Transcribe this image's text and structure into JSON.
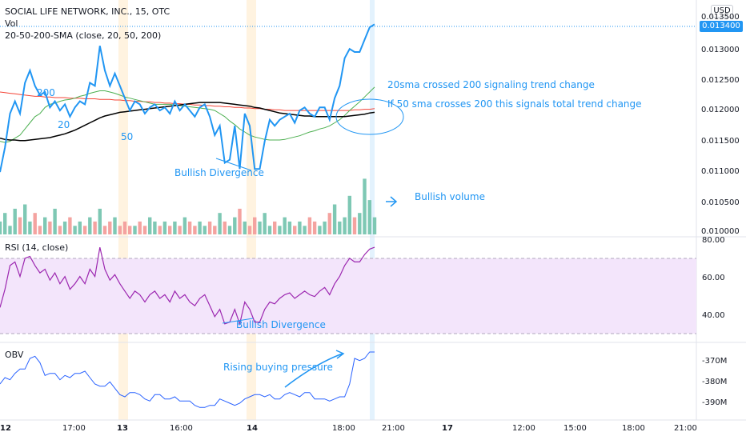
{
  "header": {
    "symbol_line": "SOCIAL LIFE NETWORK, INC., 15, OTC",
    "volume_label": "Vol",
    "sma_label": "20-50-200-SMA (close, 20, 50, 200)"
  },
  "price_axis": {
    "currency": "USD",
    "last_price": "0.013400",
    "tick_labels": [
      "0.013500",
      "0.013000",
      "0.012500",
      "0.012000",
      "0.011500",
      "0.011000",
      "0.010500",
      "0.010000"
    ]
  },
  "rsi_pane": {
    "label": "RSI (14, close)",
    "tick_labels": [
      "80.00",
      "60.00",
      "40.00"
    ]
  },
  "obv_pane": {
    "label": "OBV",
    "tick_labels": [
      "-370M",
      "-380M",
      "-390M"
    ]
  },
  "time_axis": {
    "tick_labels": [
      "12",
      "17:00",
      "13",
      "16:00",
      "14",
      "18:00",
      "21:00",
      "17",
      "12:00",
      "15:00",
      "18:00",
      "21:00"
    ]
  },
  "annotations": {
    "sma20_cross": "20sma crossed 200 signaling trend change",
    "sma50_cross": "If 50 sma crosses 200 this signals total trend change",
    "bullish_divergence_price": "Bullish Divergence",
    "bullish_volume": "Bullish volume",
    "bullish_divergence_rsi": "Bullish Divergence",
    "rising_buying_pressure": "Rising buying pressure",
    "ma200_label": "200",
    "ma20_label": "20",
    "ma50_label": "50"
  },
  "colors": {
    "price": "#2196f3",
    "sma20": "#4caf50",
    "sma50": "#000000",
    "sma200": "#f44336",
    "vol_up": "#7ec8b4",
    "vol_down": "#f4a3a0",
    "rsi_line": "#9c27b0",
    "rsi_band": "#f3e5fb",
    "obv": "#2962ff",
    "highlight": "#fff3e0",
    "annotation": "#2196f3"
  },
  "chart_data": [
    {
      "type": "line",
      "title": "SOCIAL LIFE NETWORK, INC., 15, OTC",
      "ylim": [
        0.01,
        0.0136
      ],
      "series": [
        {
          "name": "Price",
          "values": [
            0.011,
            0.0114,
            0.01195,
            0.01215,
            0.01195,
            0.01245,
            0.01265,
            0.0124,
            0.01225,
            0.0123,
            0.01205,
            0.01215,
            0.012,
            0.0121,
            0.0119,
            0.01205,
            0.01215,
            0.0121,
            0.01245,
            0.0124,
            0.01305,
            0.01265,
            0.0124,
            0.0126,
            0.0124,
            0.0122,
            0.012,
            0.01215,
            0.0121,
            0.01195,
            0.01205,
            0.0121,
            0.012,
            0.01205,
            0.01195,
            0.01215,
            0.012,
            0.0121,
            0.012,
            0.0119,
            0.01205,
            0.0121,
            0.0119,
            0.0116,
            0.01175,
            0.01115,
            0.0112,
            0.01175,
            0.01105,
            0.01195,
            0.01175,
            0.01105,
            0.01105,
            0.0115,
            0.01185,
            0.01175,
            0.01185,
            0.0119,
            0.01195,
            0.0118,
            0.012,
            0.01205,
            0.01195,
            0.0119,
            0.01205,
            0.01205,
            0.01185,
            0.0122,
            0.0124,
            0.01285,
            0.013,
            0.01295,
            0.01295,
            0.01315,
            0.01335,
            0.0134
          ]
        },
        {
          "name": "20",
          "values": [
            0.0115,
            0.01148,
            0.0115,
            0.01155,
            0.0116,
            0.0117,
            0.0118,
            0.0119,
            0.01195,
            0.01205,
            0.0121,
            0.01212,
            0.01215,
            0.01217,
            0.01218,
            0.0122,
            0.01223,
            0.01225,
            0.01228,
            0.0123,
            0.01232,
            0.01232,
            0.0123,
            0.01228,
            0.01225,
            0.01222,
            0.0122,
            0.01218,
            0.01216,
            0.01214,
            0.01212,
            0.0121,
            0.0121,
            0.0121,
            0.0121,
            0.01209,
            0.01208,
            0.01207,
            0.01206,
            0.01205,
            0.01204,
            0.01203,
            0.01202,
            0.012,
            0.01195,
            0.0119,
            0.01183,
            0.01177,
            0.0117,
            0.01165,
            0.0116,
            0.01157,
            0.01155,
            0.01153,
            0.01152,
            0.01152,
            0.01152,
            0.01153,
            0.01155,
            0.01157,
            0.01159,
            0.01162,
            0.01165,
            0.01167,
            0.0117,
            0.01172,
            0.01175,
            0.0118,
            0.01185,
            0.01192,
            0.012,
            0.01207,
            0.01214,
            0.01222,
            0.0123,
            0.01238
          ]
        },
        {
          "name": "50",
          "values": [
            0.01155,
            0.01153,
            0.01152,
            0.01152,
            0.01151,
            0.01151,
            0.01152,
            0.01153,
            0.01154,
            0.01155,
            0.01156,
            0.01158,
            0.0116,
            0.01162,
            0.01165,
            0.01168,
            0.01172,
            0.01176,
            0.0118,
            0.01184,
            0.01188,
            0.01191,
            0.01193,
            0.01195,
            0.01197,
            0.01198,
            0.01199,
            0.012,
            0.01201,
            0.01202,
            0.01203,
            0.01204,
            0.01205,
            0.01206,
            0.01207,
            0.01208,
            0.01209,
            0.0121,
            0.01211,
            0.01212,
            0.01213,
            0.01213,
            0.01213,
            0.01213,
            0.01213,
            0.01212,
            0.01211,
            0.0121,
            0.01209,
            0.01208,
            0.01207,
            0.01205,
            0.01204,
            0.01202,
            0.012,
            0.01198,
            0.01196,
            0.01195,
            0.01194,
            0.01193,
            0.01192,
            0.01191,
            0.01191,
            0.0119,
            0.0119,
            0.0119,
            0.0119,
            0.0119,
            0.0119,
            0.0119,
            0.01191,
            0.01192,
            0.01193,
            0.01194,
            0.01196,
            0.01197
          ]
        },
        {
          "name": "200",
          "values": [
            0.0123,
            0.01229,
            0.01228,
            0.01227,
            0.01226,
            0.01225,
            0.01224,
            0.01223,
            0.01223,
            0.01222,
            0.01222,
            0.01221,
            0.01221,
            0.01221,
            0.0122,
            0.0122,
            0.0122,
            0.01219,
            0.01219,
            0.01219,
            0.01218,
            0.01218,
            0.01218,
            0.01217,
            0.01217,
            0.01216,
            0.01216,
            0.01215,
            0.01215,
            0.01214,
            0.01214,
            0.01213,
            0.01213,
            0.01212,
            0.01212,
            0.01211,
            0.01211,
            0.0121,
            0.0121,
            0.01209,
            0.01209,
            0.01208,
            0.01208,
            0.01207,
            0.01207,
            0.01206,
            0.01206,
            0.01205,
            0.01205,
            0.01204,
            0.01204,
            0.01203,
            0.01203,
            0.01202,
            0.01202,
            0.01201,
            0.01201,
            0.012,
            0.012,
            0.012,
            0.012,
            0.012,
            0.012,
            0.012,
            0.012,
            0.012,
            0.012,
            0.012,
            0.012,
            0.012,
            0.012,
            0.01201,
            0.01201,
            0.01202,
            0.01202,
            0.01203
          ]
        }
      ]
    },
    {
      "type": "bar",
      "title": "Vol",
      "values": [
        3,
        5,
        2,
        6,
        4,
        7,
        3,
        5,
        2,
        4,
        3,
        6,
        2,
        3,
        4,
        2,
        3,
        2,
        4,
        3,
        6,
        2,
        3,
        4,
        2,
        3,
        2,
        2,
        3,
        2,
        4,
        3,
        2,
        3,
        2,
        3,
        2,
        4,
        3,
        2,
        3,
        2,
        3,
        2,
        5,
        3,
        2,
        4,
        6,
        3,
        2,
        4,
        3,
        5,
        2,
        3,
        2,
        4,
        3,
        2,
        3,
        2,
        4,
        3,
        2,
        3,
        5,
        7,
        3,
        4,
        9,
        4,
        5,
        13,
        8,
        4
      ],
      "ylim": [
        0,
        14
      ]
    },
    {
      "type": "line",
      "title": "RSI (14, close)",
      "ylim": [
        25,
        82
      ],
      "series": [
        {
          "name": "RSI",
          "values": [
            45,
            55,
            68,
            70,
            62,
            72,
            73,
            68,
            64,
            66,
            60,
            64,
            58,
            62,
            55,
            58,
            62,
            58,
            66,
            62,
            78,
            66,
            60,
            63,
            58,
            54,
            50,
            54,
            52,
            48,
            52,
            54,
            50,
            52,
            48,
            54,
            50,
            52,
            48,
            46,
            50,
            52,
            46,
            40,
            44,
            36,
            37,
            44,
            36,
            48,
            44,
            37,
            37,
            44,
            48,
            47,
            50,
            52,
            53,
            50,
            52,
            54,
            52,
            51,
            54,
            56,
            52,
            58,
            62,
            68,
            72,
            70,
            70,
            74,
            77,
            78
          ]
        }
      ]
    },
    {
      "type": "line",
      "title": "OBV",
      "ylim": [
        -395,
        -362
      ],
      "series": [
        {
          "name": "OBV",
          "values": [
            -380,
            -377,
            -378,
            -375,
            -373,
            -373,
            -368,
            -367,
            -370,
            -376,
            -375,
            -375,
            -378,
            -376,
            -377,
            -375,
            -375,
            -374,
            -377,
            -380,
            -381,
            -381,
            -379,
            -382,
            -385,
            -386,
            -384,
            -384,
            -385,
            -387,
            -388,
            -385,
            -385,
            -387,
            -387,
            -386,
            -388,
            -388,
            -388,
            -390,
            -391,
            -391,
            -390,
            -390,
            -387,
            -388,
            -389,
            -390,
            -389,
            -387,
            -386,
            -385,
            -385,
            -386,
            -385,
            -387,
            -387,
            -385,
            -384,
            -385,
            -386,
            -384,
            -384,
            -387,
            -387,
            -387,
            -388,
            -387,
            -386,
            -386,
            -380,
            -368,
            -369,
            -368,
            -365,
            -365
          ]
        }
      ]
    }
  ]
}
